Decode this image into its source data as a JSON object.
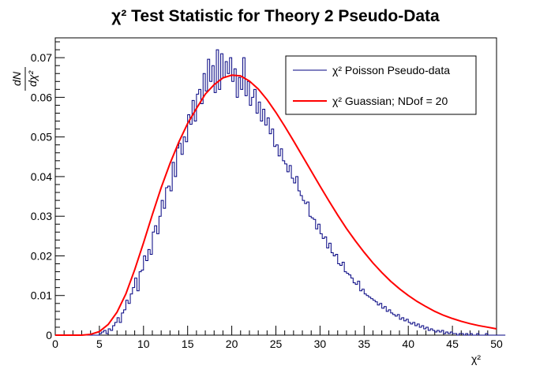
{
  "chart_data": {
    "type": "line",
    "title": "χ² Test Statistic for Theory 2 Pseudo-Data",
    "xlabel": "χ²",
    "ylabel": "dN/dχ²",
    "xlim": [
      0,
      50
    ],
    "ylim": [
      0,
      0.075
    ],
    "x_ticks": [
      "0",
      "5",
      "10",
      "15",
      "20",
      "25",
      "30",
      "35",
      "40",
      "45",
      "50"
    ],
    "y_ticks": [
      "0",
      "0.01",
      "0.02",
      "0.03",
      "0.04",
      "0.05",
      "0.06",
      "0.07"
    ],
    "grid": false,
    "legend": {
      "position": "top-right",
      "entries": [
        {
          "label": "χ² Poisson Pseudo-data",
          "color": "#000080",
          "style": "histogram"
        },
        {
          "label": "χ² Guassian; NDof = 20",
          "color": "#ff0000",
          "style": "line"
        }
      ]
    },
    "series": [
      {
        "name": "χ² Poisson Pseudo-data",
        "kind": "histogram",
        "color": "#000080",
        "bin_width": 0.25,
        "x_start": 0,
        "values": [
          0,
          0,
          0,
          0,
          0,
          0,
          0,
          0,
          0,
          0,
          0,
          0,
          0,
          0,
          0,
          0,
          0,
          0,
          0,
          0,
          0.0004,
          0.0008,
          0.0012,
          0.0004,
          0.0016,
          0.0012,
          0.0024,
          0.0032,
          0.0044,
          0.0032,
          0.0056,
          0.0064,
          0.0088,
          0.008,
          0.0104,
          0.012,
          0.0144,
          0.0112,
          0.016,
          0.0164,
          0.02,
          0.0188,
          0.0216,
          0.0204,
          0.026,
          0.0276,
          0.0256,
          0.03,
          0.034,
          0.032,
          0.0372,
          0.0376,
          0.0364,
          0.0436,
          0.04,
          0.0472,
          0.0484,
          0.0456,
          0.05,
          0.0488,
          0.0556,
          0.0532,
          0.0592,
          0.054,
          0.0608,
          0.062,
          0.0584,
          0.066,
          0.0616,
          0.0696,
          0.064,
          0.068,
          0.0612,
          0.072,
          0.062,
          0.071,
          0.065,
          0.069,
          0.066,
          0.07,
          0.064,
          0.0672,
          0.06,
          0.065,
          0.062,
          0.07,
          0.0604,
          0.064,
          0.058,
          0.06,
          0.062,
          0.056,
          0.0588,
          0.054,
          0.057,
          0.053,
          0.0548,
          0.0508,
          0.052,
          0.0476,
          0.048,
          0.0452,
          0.047,
          0.044,
          0.0432,
          0.0412,
          0.0428,
          0.0396,
          0.0384,
          0.04,
          0.0364,
          0.0352,
          0.034,
          0.0332,
          0.0336,
          0.03,
          0.0296,
          0.0292,
          0.0268,
          0.028,
          0.0256,
          0.0244,
          0.0248,
          0.022,
          0.0232,
          0.0208,
          0.02,
          0.0204,
          0.018,
          0.0176,
          0.0184,
          0.016,
          0.0156,
          0.0152,
          0.0144,
          0.0132,
          0.0128,
          0.0136,
          0.0112,
          0.0116,
          0.0104,
          0.01,
          0.0096,
          0.0092,
          0.0088,
          0.0084,
          0.0076,
          0.008,
          0.0068,
          0.0072,
          0.006,
          0.0064,
          0.0056,
          0.0052,
          0.0048,
          0.0052,
          0.004,
          0.0044,
          0.0036,
          0.004,
          0.0032,
          0.0028,
          0.0032,
          0.0024,
          0.0028,
          0.002,
          0.0024,
          0.0016,
          0.002,
          0.0012,
          0.0016,
          0.0012,
          0.0008,
          0.0012,
          0.0008,
          0.0012,
          0.0004,
          0.0008,
          0.0004,
          0.0008,
          0.0004,
          0.0004,
          0,
          0.0004,
          0.0004,
          0,
          0.0004,
          0,
          0.0004,
          0,
          0,
          0.0004,
          0,
          0,
          0,
          0.0004,
          0,
          0,
          0,
          0,
          0,
          0,
          0,
          0
        ]
      },
      {
        "name": "χ² Guassian; NDof = 20",
        "kind": "curve",
        "color": "#ff0000",
        "ndof": 20,
        "x": [
          0,
          1,
          2,
          3,
          4,
          5,
          6,
          7,
          8,
          9,
          10,
          11,
          12,
          13,
          14,
          15,
          16,
          17,
          18,
          19,
          20,
          21,
          22,
          23,
          24,
          25,
          26,
          27,
          28,
          29,
          30,
          31,
          32,
          33,
          34,
          35,
          36,
          37,
          38,
          39,
          40,
          41,
          42,
          43,
          44,
          45,
          46,
          47,
          48,
          49,
          50
        ],
        "y": [
          0,
          0,
          0,
          1e-05,
          0.0002,
          0.0009,
          0.0027,
          0.0058,
          0.0104,
          0.0165,
          0.0233,
          0.0304,
          0.0372,
          0.0433,
          0.0487,
          0.0534,
          0.0572,
          0.0608,
          0.0632,
          0.0649,
          0.0656,
          0.0654,
          0.0641,
          0.0621,
          0.0594,
          0.0562,
          0.0527,
          0.049,
          0.0452,
          0.0414,
          0.0376,
          0.0339,
          0.0303,
          0.0269,
          0.0238,
          0.0209,
          0.0182,
          0.0158,
          0.0136,
          0.0117,
          0.01,
          0.0085,
          0.0072,
          0.006,
          0.005,
          0.0042,
          0.0035,
          0.0029,
          0.0024,
          0.002,
          0.0016
        ]
      }
    ]
  }
}
